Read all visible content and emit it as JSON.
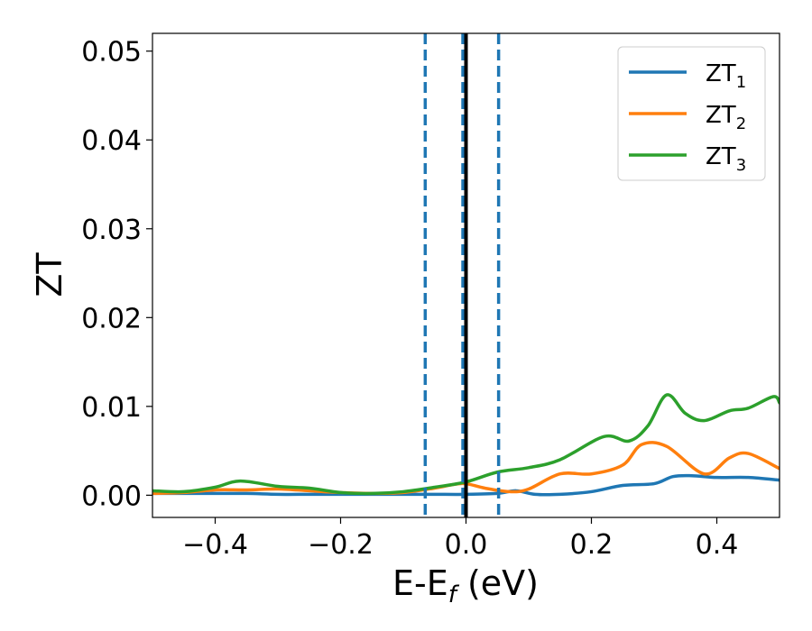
{
  "chart_data": {
    "type": "line",
    "xlabel_base": "E-E",
    "xlabel_sub": "f",
    "xlabel_unit": " (eV)",
    "ylabel": "ZT",
    "xlim": [
      -0.5,
      0.5
    ],
    "ylim": [
      -0.0025,
      0.052
    ],
    "x_ticks": [
      -0.4,
      -0.2,
      0.0,
      0.2,
      0.4
    ],
    "x_tick_labels": [
      "−0.4",
      "−0.2",
      "0.0",
      "0.2",
      "0.4"
    ],
    "y_ticks": [
      0.0,
      0.01,
      0.02,
      0.03,
      0.04,
      0.05
    ],
    "y_tick_labels": [
      "0.00",
      "0.01",
      "0.02",
      "0.03",
      "0.04",
      "0.05"
    ],
    "grid": false,
    "legend_position": "top-right",
    "vlines": [
      {
        "x": -0.065,
        "style": "dashed",
        "color": "#1f77b4"
      },
      {
        "x": -0.005,
        "style": "dashed",
        "color": "#1f77b4"
      },
      {
        "x": 0.0,
        "style": "solid",
        "color": "#000000"
      },
      {
        "x": 0.052,
        "style": "dashed",
        "color": "#1f77b4"
      }
    ],
    "series": [
      {
        "name": "ZT",
        "name_sub": "1",
        "color": "#1f77b4",
        "points": [
          [
            -0.5,
            0.0002
          ],
          [
            -0.45,
            0.0002
          ],
          [
            -0.4,
            0.0002
          ],
          [
            -0.35,
            0.0002
          ],
          [
            -0.3,
            0.0001
          ],
          [
            -0.25,
            0.0001
          ],
          [
            -0.2,
            0.0001
          ],
          [
            -0.15,
            0.0001
          ],
          [
            -0.1,
            0.0001
          ],
          [
            -0.05,
            0.0001
          ],
          [
            0.0,
            0.0001
          ],
          [
            0.05,
            0.0002
          ],
          [
            0.08,
            0.0005
          ],
          [
            0.11,
            0.0001
          ],
          [
            0.15,
            0.0001
          ],
          [
            0.2,
            0.0004
          ],
          [
            0.25,
            0.0011
          ],
          [
            0.3,
            0.0013
          ],
          [
            0.33,
            0.0021
          ],
          [
            0.36,
            0.0022
          ],
          [
            0.4,
            0.002
          ],
          [
            0.45,
            0.002
          ],
          [
            0.5,
            0.0017
          ]
        ]
      },
      {
        "name": "ZT",
        "name_sub": "2",
        "color": "#ff7f0e",
        "points": [
          [
            -0.5,
            0.0002
          ],
          [
            -0.45,
            0.0003
          ],
          [
            -0.4,
            0.0006
          ],
          [
            -0.35,
            0.0006
          ],
          [
            -0.3,
            0.0007
          ],
          [
            -0.25,
            0.0005
          ],
          [
            -0.2,
            0.0003
          ],
          [
            -0.15,
            0.0002
          ],
          [
            -0.1,
            0.0003
          ],
          [
            -0.05,
            0.0008
          ],
          [
            -0.02,
            0.0012
          ],
          [
            0.0,
            0.0013
          ],
          [
            0.03,
            0.0008
          ],
          [
            0.07,
            0.0004
          ],
          [
            0.1,
            0.0007
          ],
          [
            0.15,
            0.0024
          ],
          [
            0.2,
            0.0024
          ],
          [
            0.25,
            0.0034
          ],
          [
            0.28,
            0.0057
          ],
          [
            0.32,
            0.0055
          ],
          [
            0.38,
            0.0024
          ],
          [
            0.42,
            0.0042
          ],
          [
            0.45,
            0.0047
          ],
          [
            0.5,
            0.003
          ]
        ]
      },
      {
        "name": "ZT",
        "name_sub": "3",
        "color": "#2ca02c",
        "points": [
          [
            -0.5,
            0.0005
          ],
          [
            -0.45,
            0.0004
          ],
          [
            -0.4,
            0.0009
          ],
          [
            -0.36,
            0.0016
          ],
          [
            -0.3,
            0.001
          ],
          [
            -0.25,
            0.0008
          ],
          [
            -0.2,
            0.0003
          ],
          [
            -0.15,
            0.0002
          ],
          [
            -0.1,
            0.0004
          ],
          [
            -0.05,
            0.0009
          ],
          [
            0.0,
            0.0015
          ],
          [
            0.05,
            0.0026
          ],
          [
            0.1,
            0.0031
          ],
          [
            0.15,
            0.004
          ],
          [
            0.22,
            0.0066
          ],
          [
            0.26,
            0.0061
          ],
          [
            0.29,
            0.0078
          ],
          [
            0.32,
            0.0113
          ],
          [
            0.35,
            0.0092
          ],
          [
            0.38,
            0.0084
          ],
          [
            0.42,
            0.0095
          ],
          [
            0.45,
            0.0098
          ],
          [
            0.49,
            0.0111
          ],
          [
            0.5,
            0.0104
          ]
        ]
      }
    ]
  }
}
